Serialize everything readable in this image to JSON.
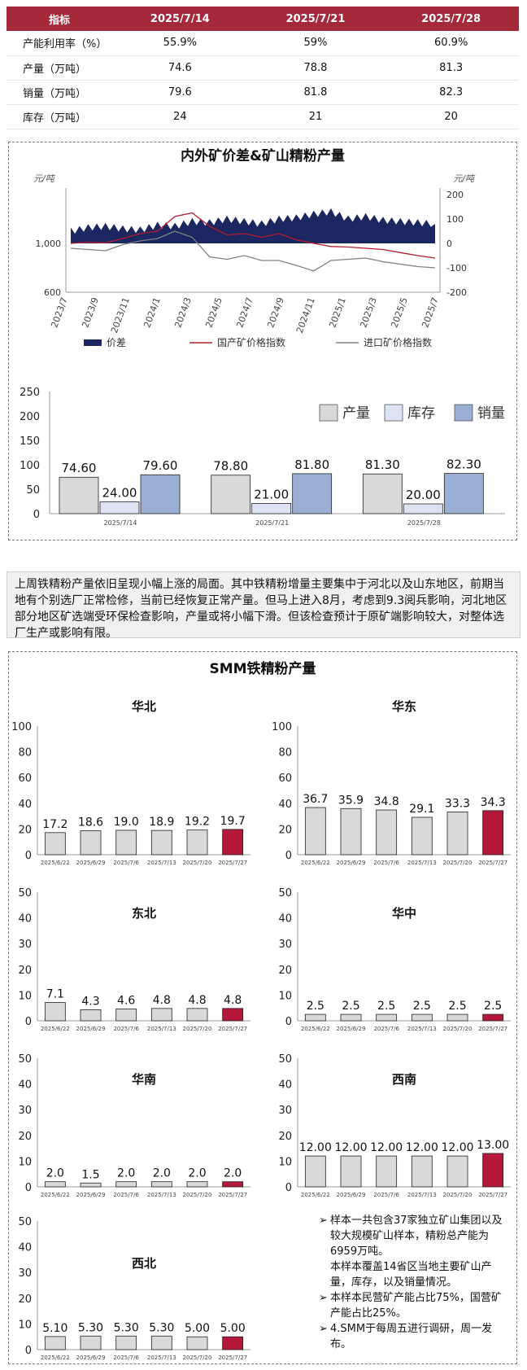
{
  "summary_table": {
    "headers": [
      "指标",
      "2025/7/14",
      "2025/7/21",
      "2025/7/28"
    ],
    "rows": [
      [
        "产能利用率（%）",
        "55.9%",
        "59%",
        "60.9%"
      ],
      [
        "产量（万吨）",
        "74.6",
        "78.8",
        "81.3"
      ],
      [
        "销量（万吨）",
        "79.6",
        "81.8",
        "82.3"
      ],
      [
        "库存（万吨）",
        "24",
        "21",
        "20"
      ]
    ]
  },
  "panel1": {
    "title": "内外矿价差&矿山精粉产量"
  },
  "panel2": {
    "title": "SMM铁精粉产量"
  },
  "commentary": "上周铁精粉产量依旧呈现小幅上涨的局面。其中铁精粉增量主要集中于河北以及山东地区，前期当地有个别选厂正常检修，当前已经恢复正常产量。但马上进入8月，考虑到9.3阅兵影响，河北地区部分地区矿选端受环保检查影响，产量或将小幅下滑。但该检查预计于原矿端影响较大，对整体选厂生产或影响有限。",
  "notes": [
    {
      "arrow": "➢",
      "text": "样本一共包含37家独立矿山集团以及较大规模矿山样本，精粉总产能为6959万吨。",
      "sub": "本样本覆盖14省区当地主要矿山产量，库存，以及销量情况。"
    },
    {
      "arrow": "➢",
      "text": "本样本民营矿产能占比75%，国营矿产能占比25%。",
      "sub": ""
    },
    {
      "arrow": "➢",
      "text": "4.SMM于每周五进行调研，周一发布。",
      "sub": ""
    }
  ],
  "colors": {
    "header_red": "#a3293b",
    "navy": "#1c2660",
    "red_line": "#b01e2e",
    "gray_line": "#808080",
    "bar_gray": "#d9d9d9",
    "bar_lightblue": "#dde3f3",
    "bar_blue": "#9aafd3",
    "bar_highlight": "#b5183a"
  },
  "chart_data": [
    {
      "type": "area",
      "title": "内外矿价差&矿山精粉产量",
      "ylabel_left": "元/吨",
      "ylabel_right": "元/吨",
      "y_left_ticks": [
        "600",
        "1,000"
      ],
      "y_left_range": [
        600,
        1400
      ],
      "y_right_ticks": [
        "200",
        "100",
        "0",
        "-100",
        "-200"
      ],
      "y_right_range": [
        -200,
        200
      ],
      "x_ticks": [
        "2023/7",
        "2023/9",
        "2023/11",
        "2024/1",
        "2024/3",
        "2024/5",
        "2024/7",
        "2024/9",
        "2024/11",
        "2025/1",
        "2025/3",
        "2025/5",
        "2025/7"
      ],
      "legend": [
        "价差",
        "国产矿价格指数",
        "进口矿价格指数"
      ],
      "series": [
        {
          "name": "价差",
          "axis": "right",
          "values": [
            50,
            65,
            70,
            60,
            55,
            75,
            70,
            90,
            85,
            100,
            90,
            80,
            100,
            105,
            120,
            130,
            100,
            110,
            95,
            90,
            85,
            80
          ]
        },
        {
          "name": "国产矿价格指数",
          "axis": "left",
          "values": [
            1000,
            1010,
            1005,
            1040,
            1080,
            1100,
            1220,
            1250,
            1140,
            1070,
            1080,
            1050,
            1080,
            1030,
            1000,
            975,
            970,
            960,
            950,
            925,
            900,
            880
          ]
        },
        {
          "name": "进口矿价格指数",
          "axis": "left",
          "values": [
            960,
            950,
            940,
            990,
            1020,
            1040,
            1100,
            1050,
            890,
            870,
            900,
            860,
            860,
            820,
            775,
            860,
            870,
            880,
            850,
            830,
            810,
            800
          ]
        }
      ]
    },
    {
      "type": "bar",
      "categories": [
        "2025/7/14",
        "2025/7/21",
        "2025/7/28"
      ],
      "ylim": [
        0,
        250
      ],
      "y_ticks": [
        "0",
        "50",
        "100",
        "150",
        "200",
        "250"
      ],
      "legend_position": "top-right",
      "series": [
        {
          "name": "产量",
          "values": [
            74.6,
            78.8,
            81.3
          ],
          "labels": [
            "74.60",
            "78.80",
            "81.30"
          ]
        },
        {
          "name": "库存",
          "values": [
            24,
            21,
            20
          ],
          "labels": [
            "24.00",
            "21.00",
            "20.00"
          ]
        },
        {
          "name": "销量",
          "values": [
            79.6,
            81.8,
            82.3
          ],
          "labels": [
            "79.60",
            "81.80",
            "82.30"
          ]
        }
      ]
    },
    {
      "type": "bar",
      "title": "华北",
      "categories": [
        "2025/6/22",
        "2025/6/29",
        "2025/7/6",
        "2025/7/13",
        "2025/7/20",
        "2025/7/27"
      ],
      "values": [
        17.2,
        18.6,
        19.0,
        18.9,
        19.2,
        19.7
      ],
      "labels": [
        "17.2",
        "18.6",
        "19.0",
        "18.9",
        "19.2",
        "19.7"
      ],
      "ylim": [
        0,
        100
      ],
      "y_ticks": [
        "0",
        "20",
        "40",
        "60",
        "80",
        "100"
      ]
    },
    {
      "type": "bar",
      "title": "华东",
      "categories": [
        "2025/6/22",
        "2025/6/29",
        "2025/7/6",
        "2025/7/13",
        "2025/7/20",
        "2025/7/27"
      ],
      "values": [
        36.7,
        35.9,
        34.8,
        29.1,
        33.3,
        34.3
      ],
      "labels": [
        "36.7",
        "35.9",
        "34.8",
        "29.1",
        "33.3",
        "34.3"
      ],
      "ylim": [
        0,
        100
      ],
      "y_ticks": [
        "0",
        "20",
        "40",
        "60",
        "80",
        "100"
      ]
    },
    {
      "type": "bar",
      "title": "东北",
      "categories": [
        "2025/6/22",
        "2025/6/29",
        "2025/7/6",
        "2025/7/13",
        "2025/7/20",
        "2025/7/27"
      ],
      "values": [
        7.1,
        4.3,
        4.6,
        4.8,
        4.8,
        4.8
      ],
      "labels": [
        "7.1",
        "4.3",
        "4.6",
        "4.8",
        "4.8",
        "4.8"
      ],
      "ylim": [
        0,
        50
      ],
      "y_ticks": [
        "0",
        "10",
        "20",
        "30",
        "40",
        "50"
      ]
    },
    {
      "type": "bar",
      "title": "华中",
      "categories": [
        "2025/6/22",
        "2025/6/29",
        "2025/7/6",
        "2025/7/13",
        "2025/7/20",
        "2025/7/27"
      ],
      "values": [
        2.5,
        2.5,
        2.5,
        2.5,
        2.5,
        2.5
      ],
      "labels": [
        "2.5",
        "2.5",
        "2.5",
        "2.5",
        "2.5",
        "2.5"
      ],
      "ylim": [
        0,
        50
      ],
      "y_ticks": [
        "0",
        "10",
        "20",
        "30",
        "40",
        "50"
      ]
    },
    {
      "type": "bar",
      "title": "华南",
      "categories": [
        "2025/6/22",
        "2025/6/29",
        "2025/7/6",
        "2025/7/13",
        "2025/7/20",
        "2025/7/27"
      ],
      "values": [
        2.0,
        1.5,
        2.0,
        2.0,
        2.0,
        2.0
      ],
      "labels": [
        "2.0",
        "1.5",
        "2.0",
        "2.0",
        "2.0",
        "2.0"
      ],
      "ylim": [
        0,
        50
      ],
      "y_ticks": [
        "0",
        "10",
        "20",
        "30",
        "40",
        "50"
      ]
    },
    {
      "type": "bar",
      "title": "西南",
      "categories": [
        "2025/6/22",
        "2025/6/29",
        "2025/7/6",
        "2025/7/13",
        "2025/7/20",
        "2025/7/27"
      ],
      "values": [
        12.0,
        12.0,
        12.0,
        12.0,
        12.0,
        13.0
      ],
      "labels": [
        "12.00",
        "12.00",
        "12.00",
        "12.00",
        "12.00",
        "13.00"
      ],
      "ylim": [
        0,
        50
      ],
      "y_ticks": [
        "0",
        "10",
        "20",
        "30",
        "40",
        "50"
      ]
    },
    {
      "type": "bar",
      "title": "西北",
      "categories": [
        "2025/6/22",
        "2025/6/29",
        "2025/7/6",
        "2025/7/13",
        "2025/7/20",
        "2025/7/27"
      ],
      "values": [
        5.1,
        5.3,
        5.3,
        5.3,
        5.0,
        5.0
      ],
      "labels": [
        "5.10",
        "5.30",
        "5.30",
        "5.30",
        "5.00",
        "5.00"
      ],
      "ylim": [
        0,
        50
      ],
      "y_ticks": [
        "0",
        "10",
        "20",
        "30",
        "40",
        "50"
      ]
    }
  ]
}
